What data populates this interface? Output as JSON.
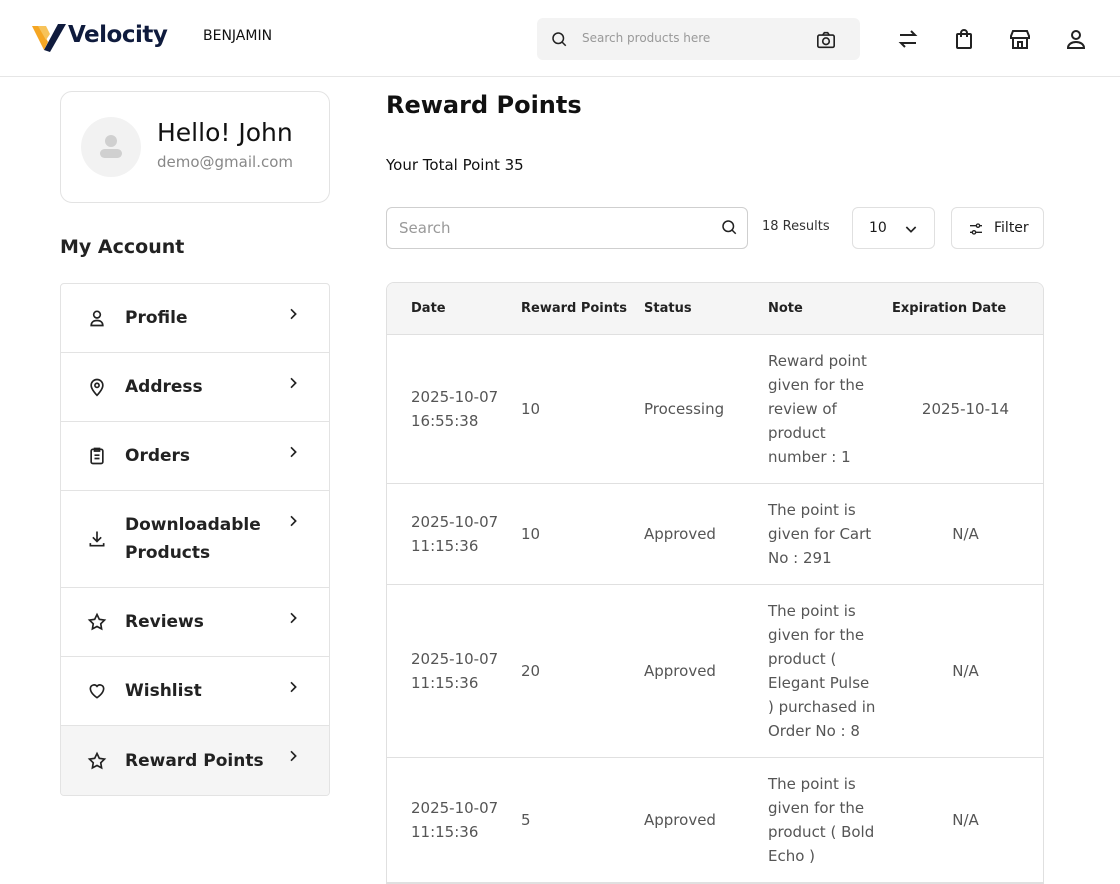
{
  "header": {
    "brand": "Velocity",
    "user": "BENJAMIN",
    "search_placeholder": "Search products here"
  },
  "profile": {
    "greeting": "Hello! John",
    "email": "demo@gmail.com"
  },
  "sidebar": {
    "title": "My Account",
    "items": [
      "Profile",
      "Address",
      "Orders",
      "Downloadable Products",
      "Reviews",
      "Wishlist",
      "Reward Points"
    ]
  },
  "main": {
    "title": "Reward Points",
    "total_label": "Your Total Point",
    "total_points": 35,
    "search_placeholder": "Search",
    "results": "18 Results",
    "per_page": 10,
    "filter": "Filter",
    "table": {
      "columns": [
        "Date",
        "Reward Points",
        "Status",
        "Note",
        "Expiration Date"
      ],
      "rows": [
        [
          "2025-10-07 16:55:38",
          10,
          "Processing",
          "Reward point given for the review of product number : 1",
          "2025-10-14"
        ],
        [
          "2025-10-07 11:15:36",
          10,
          "Approved",
          "The point is given for Cart No : 291",
          "N/A"
        ],
        [
          "2025-10-07 11:15:36",
          20,
          "Approved",
          "The point is given for the product ( Elegant Pulse ) purchased in Order No : 8",
          "N/A"
        ],
        [
          "2025-10-07 11:15:36",
          5,
          "Approved",
          "The point is given for the product ( Bold Echo )",
          "N/A"
        ]
      ]
    }
  }
}
